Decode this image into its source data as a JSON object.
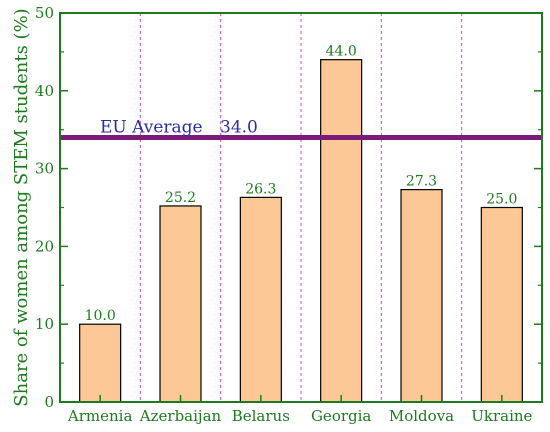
{
  "chart_data": {
    "type": "bar",
    "title": "",
    "xlabel": "",
    "ylabel": "Share of women among STEM students (%)",
    "categories": [
      "Armenia",
      "Azerbaijan",
      "Belarus",
      "Georgia",
      "Moldova",
      "Ukraine"
    ],
    "values": [
      10.0,
      25.2,
      26.3,
      44.0,
      27.3,
      25.0
    ],
    "value_labels": [
      "10.0",
      "25.2",
      "26.3",
      "44.0",
      "27.3",
      "25.0"
    ],
    "ylim": [
      0,
      50
    ],
    "yticks": [
      0,
      10,
      20,
      30,
      40,
      50
    ],
    "ytick_labels": [
      "0",
      "10",
      "20",
      "30",
      "40",
      "50"
    ],
    "reference_line": {
      "value": 34.0,
      "label": "EU Average",
      "value_label": "34.0",
      "color": "#7a1a7a",
      "label_color": "#2a2aa8"
    },
    "grid": "vertical dashed category separators",
    "colors": {
      "bar_fill": "#fcc896",
      "bar_stroke": "#000000",
      "text": "#1e7a1e",
      "axis": "#1e7a1e",
      "separator": "#c64cc6"
    }
  }
}
